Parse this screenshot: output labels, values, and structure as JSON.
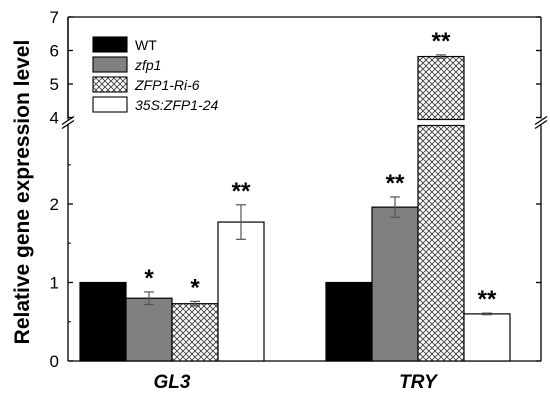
{
  "chart_data": {
    "type": "bar",
    "title": "",
    "xlabel": "",
    "ylabel": "Relative gene expression level",
    "categories": [
      "GL3",
      "TRY"
    ],
    "axis_break": {
      "lower": [
        0,
        3
      ],
      "upper": [
        4,
        7
      ]
    },
    "yticks_lower": [
      0,
      1,
      2
    ],
    "yticks_upper": [
      4,
      5,
      6,
      7
    ],
    "legend_position": "top-left",
    "series": [
      {
        "name": "WT",
        "fill": "solid-black",
        "color": "#000000",
        "values": [
          1.0,
          1.0
        ],
        "errors": [
          0,
          0
        ],
        "sig": [
          "",
          ""
        ]
      },
      {
        "name": "zfp1",
        "fill": "solid-gray",
        "color": "#808080",
        "values": [
          0.8,
          1.96
        ],
        "errors": [
          0.08,
          0.13
        ],
        "sig": [
          "*",
          "**"
        ]
      },
      {
        "name": "ZFP1-Ri-6",
        "fill": "crosshatch",
        "color": "#ffffff",
        "values": [
          0.73,
          5.82
        ],
        "errors": [
          0.03,
          0.05
        ],
        "sig": [
          "*",
          "**"
        ]
      },
      {
        "name": "35S:ZFP1-24",
        "fill": "white",
        "color": "#ffffff",
        "values": [
          1.77,
          0.6
        ],
        "errors": [
          0.22,
          0.01
        ],
        "sig": [
          "**",
          "**"
        ]
      }
    ]
  }
}
